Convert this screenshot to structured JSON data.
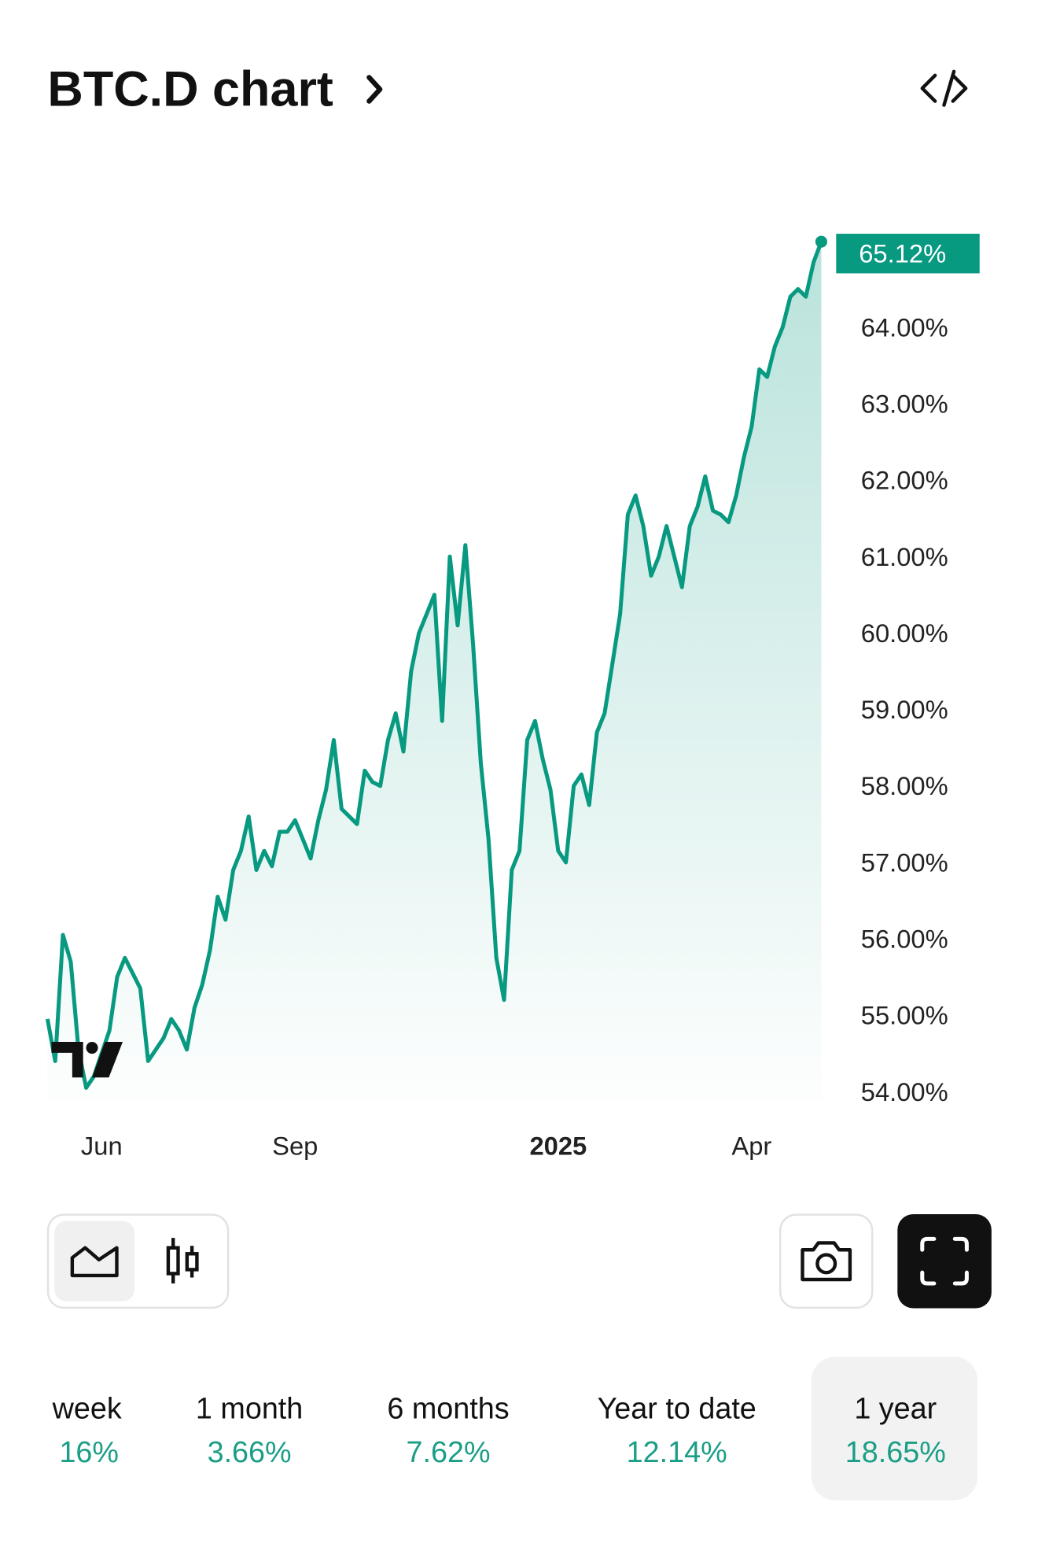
{
  "header": {
    "title": "BTC.D chart"
  },
  "chart_data": {
    "type": "line",
    "color": "#089981",
    "categories": [
      null,
      null,
      null,
      null,
      null,
      null,
      null,
      "Jun",
      null,
      null,
      null,
      null,
      null,
      null,
      null,
      null,
      null,
      null,
      null,
      null,
      null,
      null,
      null,
      null,
      null,
      null,
      null,
      null,
      null,
      null,
      null,
      null,
      "Sep",
      null,
      null,
      null,
      null,
      null,
      null,
      null,
      null,
      null,
      null,
      null,
      null,
      null,
      null,
      null,
      null,
      null,
      null,
      null,
      null,
      null,
      null,
      null,
      null,
      null,
      null,
      null,
      null,
      null,
      null,
      null,
      null,
      null,
      "2025",
      null,
      null,
      null,
      null,
      null,
      null,
      null,
      null,
      null,
      null,
      null,
      null,
      null,
      null,
      null,
      null,
      null,
      null,
      null,
      null,
      null,
      null,
      null,
      null,
      "Apr",
      null,
      null,
      null,
      null,
      null,
      null,
      null,
      null,
      null
    ],
    "values": [
      54.95,
      54.4,
      56.05,
      55.7,
      54.55,
      54.05,
      54.2,
      54.5,
      54.8,
      55.5,
      55.75,
      55.55,
      55.35,
      54.4,
      54.55,
      54.7,
      54.95,
      54.8,
      54.55,
      55.1,
      55.4,
      55.85,
      56.55,
      56.25,
      56.9,
      57.15,
      57.6,
      56.9,
      57.15,
      56.95,
      57.4,
      57.4,
      57.55,
      57.3,
      57.05,
      57.55,
      57.95,
      58.6,
      57.7,
      57.6,
      57.5,
      58.2,
      58.05,
      58.0,
      58.6,
      58.95,
      58.45,
      59.5,
      60.0,
      60.25,
      60.5,
      58.85,
      61.0,
      60.1,
      61.15,
      59.85,
      58.3,
      57.3,
      55.75,
      55.2,
      56.9,
      57.15,
      58.6,
      58.85,
      58.35,
      57.95,
      57.15,
      57.0,
      58.0,
      58.15,
      57.75,
      58.7,
      58.95,
      59.6,
      60.25,
      61.55,
      61.8,
      61.4,
      60.75,
      61.0,
      61.4,
      61.0,
      60.6,
      61.4,
      61.65,
      62.05,
      61.6,
      61.55,
      61.45,
      61.8,
      62.3,
      62.7,
      63.45,
      63.35,
      63.75,
      64.0,
      64.4,
      64.5,
      64.4,
      64.85,
      65.12
    ],
    "last_label": "65.12%",
    "ylim": [
      53.9,
      65.3
    ],
    "yticks": [
      {
        "value": 54,
        "label": "54.00%"
      },
      {
        "value": 55,
        "label": "55.00%"
      },
      {
        "value": 56,
        "label": "56.00%"
      },
      {
        "value": 57,
        "label": "57.00%"
      },
      {
        "value": 58,
        "label": "58.00%"
      },
      {
        "value": 59,
        "label": "59.00%"
      },
      {
        "value": 60,
        "label": "60.00%"
      },
      {
        "value": 61,
        "label": "61.00%"
      },
      {
        "value": 62,
        "label": "62.00%"
      },
      {
        "value": 63,
        "label": "63.00%"
      },
      {
        "value": 64,
        "label": "64.00%"
      }
    ],
    "grid": false
  },
  "periods": [
    {
      "label": "week",
      "change": "16%"
    },
    {
      "label": "1 month",
      "change": "3.66%"
    },
    {
      "label": "6 months",
      "change": "7.62%"
    },
    {
      "label": "Year to date",
      "change": "12.14%"
    },
    {
      "label": "1 year",
      "change": "18.65%"
    }
  ]
}
